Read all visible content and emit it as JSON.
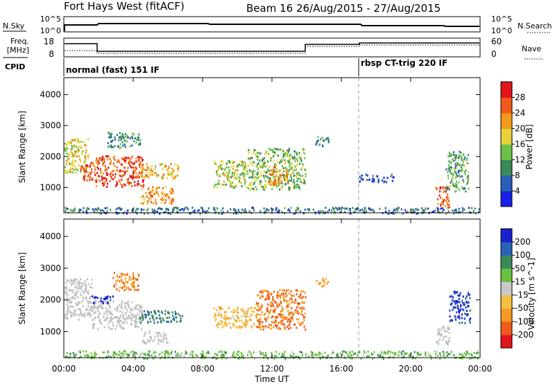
{
  "header": {
    "station": "Fort Hays West (fitACF)",
    "beam_range": "Beam 16  26/Aug/2015 - 27/Aug/2015"
  },
  "top_panels": {
    "nsky_label": "N.Sky",
    "nsearch_label": "N.Search",
    "nsky_ticks": [
      "10^5",
      "10^0"
    ],
    "nsearch_ticks": [
      "10^5",
      "10^0"
    ],
    "freq_label_line1": "Freq.",
    "freq_label_line2": "[MHz]",
    "freq_ticks": [
      "18",
      "8"
    ],
    "nave_label": "Nave",
    "nave_ticks": [
      "60",
      "0"
    ],
    "cpid_label": "CPID",
    "cpid_segments": [
      "normal (fast) 151 IF",
      "rbsp CT-trig 220 IF"
    ]
  },
  "time_axis": {
    "label": "Time UT",
    "ticks": [
      "00:00",
      "04:00",
      "08:00",
      "12:00",
      "16:00",
      "20:00",
      "00:00"
    ]
  },
  "colors": {
    "power": [
      "#1a20e6",
      "#2a5fb8",
      "#3c8a5a",
      "#6cc04a",
      "#e8d23a",
      "#f29a1a",
      "#f05a1a",
      "#e0141a"
    ],
    "velocity": [
      "#e0141a",
      "#f05a1a",
      "#f49a20",
      "#f4c040",
      "#c8c8c8",
      "#68c040",
      "#3c8a5a",
      "#2a62b8",
      "#1a20d0"
    ],
    "ground": "#c0c0c0"
  },
  "chart_data": [
    {
      "type": "heatmap",
      "name": "power",
      "ylabel": "Slant Range [km]",
      "y_ticks": [
        "1000",
        "2000",
        "3000",
        "4000"
      ],
      "ylim": [
        180,
        4550
      ],
      "xlim_hours": [
        0,
        24
      ],
      "colorbar": {
        "label": "Power [dB]",
        "ticks": [
          "4",
          "8",
          "12",
          "16",
          "20",
          "24",
          "28"
        ],
        "range": [
          0,
          32
        ]
      },
      "echo_regions": [
        {
          "t_start": 0.0,
          "t_end": 1.4,
          "r_low": 1500,
          "r_high": 2600,
          "value": 18
        },
        {
          "t_start": 0.9,
          "t_end": 1.8,
          "r_low": 1250,
          "r_high": 1850,
          "value": 26
        },
        {
          "t_start": 1.8,
          "t_end": 4.6,
          "r_low": 1050,
          "r_high": 2050,
          "value": 27
        },
        {
          "t_start": 2.5,
          "t_end": 4.4,
          "r_low": 2300,
          "r_high": 2800,
          "value": 10
        },
        {
          "t_start": 4.4,
          "t_end": 6.6,
          "r_low": 1300,
          "r_high": 1800,
          "value": 20
        },
        {
          "t_start": 4.4,
          "t_end": 6.3,
          "r_low": 500,
          "r_high": 1050,
          "value": 22
        },
        {
          "t_start": 8.6,
          "t_end": 10.6,
          "r_low": 1000,
          "r_high": 1900,
          "value": 16
        },
        {
          "t_start": 10.6,
          "t_end": 13.9,
          "r_low": 950,
          "r_high": 2300,
          "value": 14
        },
        {
          "t_start": 11.7,
          "t_end": 12.9,
          "r_low": 1100,
          "r_high": 1700,
          "value": 23
        },
        {
          "t_start": 14.5,
          "t_end": 15.3,
          "r_low": 2350,
          "r_high": 2700,
          "value": 9
        },
        {
          "t_start": 17.0,
          "t_end": 19.0,
          "r_low": 1200,
          "r_high": 1450,
          "value": 5
        },
        {
          "t_start": 21.4,
          "t_end": 22.2,
          "r_low": 350,
          "r_high": 1050,
          "value": 27
        },
        {
          "t_start": 22.0,
          "t_end": 23.3,
          "r_low": 900,
          "r_high": 2200,
          "value": 12
        },
        {
          "t_start": 0.0,
          "t_end": 24.0,
          "r_low": 180,
          "r_high": 380,
          "value": 8
        }
      ]
    },
    {
      "type": "heatmap",
      "name": "velocity",
      "ylabel": "Slant Range [km]",
      "y_ticks": [
        "1000",
        "2000",
        "3000",
        "4000"
      ],
      "ylim": [
        180,
        4550
      ],
      "xlim_hours": [
        0,
        24
      ],
      "colorbar": {
        "label": "Velocity [m s^-1]",
        "ticks": [
          "200",
          "100",
          "50",
          "15",
          "-15",
          "-50",
          "-100",
          "-200"
        ],
        "range": [
          -250,
          250
        ]
      },
      "echo_regions": [
        {
          "t_start": 0.0,
          "t_end": 1.6,
          "r_low": 1400,
          "r_high": 2700,
          "value": 0,
          "ground": true
        },
        {
          "t_start": 1.6,
          "t_end": 4.5,
          "r_low": 1100,
          "r_high": 2000,
          "value": 0,
          "ground": true
        },
        {
          "t_start": 1.6,
          "t_end": 2.8,
          "r_low": 1900,
          "r_high": 2150,
          "value": -210
        },
        {
          "t_start": 2.8,
          "t_end": 4.3,
          "r_low": 2300,
          "r_high": 2900,
          "value": 120
        },
        {
          "t_start": 4.3,
          "t_end": 6.8,
          "r_low": 1300,
          "r_high": 1700,
          "value": -130
        },
        {
          "t_start": 4.5,
          "t_end": 6.0,
          "r_low": 650,
          "r_high": 1050,
          "value": 0,
          "ground": true
        },
        {
          "t_start": 8.6,
          "t_end": 11.0,
          "r_low": 1150,
          "r_high": 1800,
          "value": 60
        },
        {
          "t_start": 11.0,
          "t_end": 13.9,
          "r_low": 1100,
          "r_high": 2350,
          "value": 140
        },
        {
          "t_start": 14.5,
          "t_end": 15.3,
          "r_low": 2450,
          "r_high": 2700,
          "value": 90
        },
        {
          "t_start": 21.4,
          "t_end": 22.2,
          "r_low": 600,
          "r_high": 1200,
          "value": 0,
          "ground": true
        },
        {
          "t_start": 22.2,
          "t_end": 23.4,
          "r_low": 1300,
          "r_high": 2300,
          "value": -200
        },
        {
          "t_start": 0.0,
          "t_end": 24.0,
          "r_low": 180,
          "r_high": 420,
          "value": -60
        }
      ]
    }
  ]
}
